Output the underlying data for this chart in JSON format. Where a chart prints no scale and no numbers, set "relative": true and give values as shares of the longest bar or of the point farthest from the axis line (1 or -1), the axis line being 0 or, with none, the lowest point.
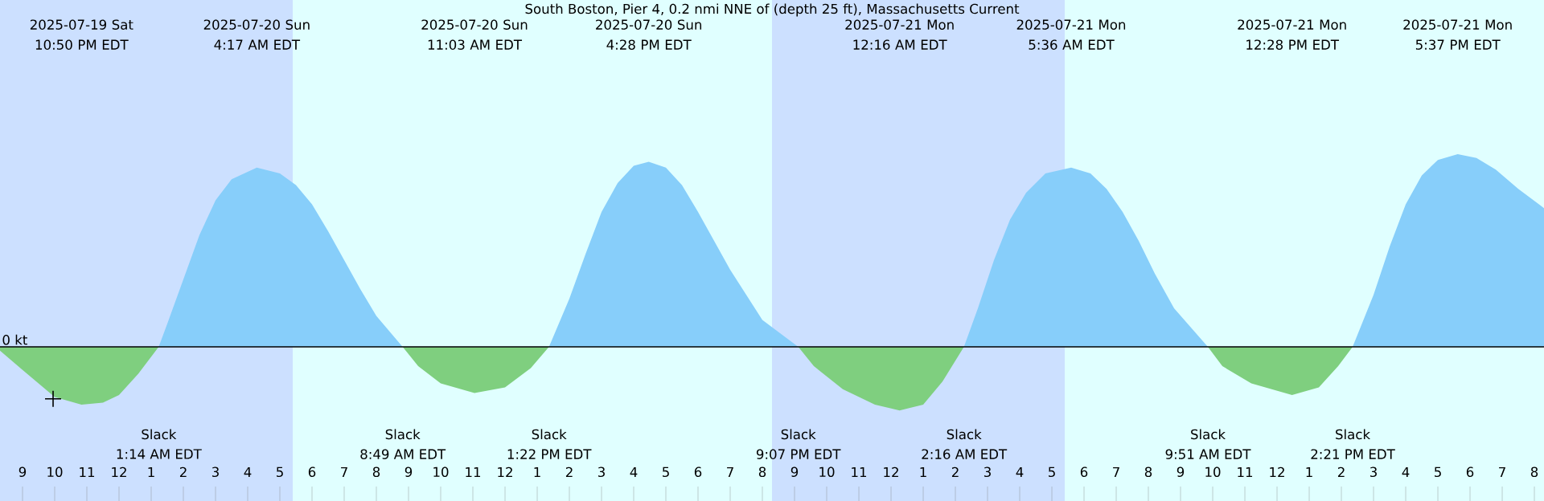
{
  "chart_data": {
    "type": "area",
    "title": "South Boston, Pier 4, 0.2 nmi NNE of (depth 25 ft), Massachusetts Current",
    "relative": true,
    "series": [
      {
        "color": "#87cefa",
        "x": [
          "2025-07-20T01:14",
          "2025-07-20T01:30",
          "2025-07-20T02:00",
          "2025-07-20T02:30",
          "2025-07-20T03:00",
          "2025-07-20T03:30",
          "2025-07-20T04:17",
          "2025-07-20T05:00",
          "2025-07-20T05:30",
          "2025-07-20T06:00",
          "2025-07-20T06:30",
          "2025-07-20T07:00",
          "2025-07-20T07:30",
          "2025-07-20T08:00",
          "2025-07-20T08:49",
          "2025-07-20T13:22",
          "2025-07-20T14:00",
          "2025-07-20T14:30",
          "2025-07-20T15:00",
          "2025-07-20T15:30",
          "2025-07-20T16:00",
          "2025-07-20T16:28",
          "2025-07-20T17:00",
          "2025-07-20T17:30",
          "2025-07-20T18:00",
          "2025-07-20T18:30",
          "2025-07-20T19:00",
          "2025-07-20T19:30",
          "2025-07-20T20:00",
          "2025-07-20T21:07",
          "2025-07-21T02:16",
          "2025-07-21T02:42",
          "2025-07-21T03:12",
          "2025-07-21T03:42",
          "2025-07-21T04:12",
          "2025-07-21T04:48",
          "2025-07-21T05:36",
          "2025-07-21T06:12",
          "2025-07-21T06:42",
          "2025-07-21T07:12",
          "2025-07-21T07:42",
          "2025-07-21T08:12",
          "2025-07-21T08:48",
          "2025-07-21T09:51",
          "2025-07-21T14:21",
          "2025-07-21T15:00",
          "2025-07-21T15:30",
          "2025-07-21T16:00",
          "2025-07-21T16:30",
          "2025-07-21T17:00",
          "2025-07-21T17:37",
          "2025-07-21T18:12",
          "2025-07-21T18:48",
          "2025-07-21T19:30",
          "2025-07-21T20:18"
        ],
        "values": [
          0,
          0.12,
          0.35,
          0.58,
          0.76,
          0.87,
          0.93,
          0.9,
          0.84,
          0.74,
          0.6,
          0.45,
          0.3,
          0.16,
          0,
          0,
          0.25,
          0.48,
          0.7,
          0.85,
          0.94,
          0.96,
          0.93,
          0.84,
          0.7,
          0.55,
          0.4,
          0.27,
          0.14,
          0,
          0,
          0.2,
          0.45,
          0.66,
          0.8,
          0.9,
          0.93,
          0.9,
          0.82,
          0.7,
          0.55,
          0.38,
          0.2,
          0,
          0,
          0.27,
          0.52,
          0.74,
          0.89,
          0.97,
          1.0,
          0.98,
          0.92,
          0.82,
          0.72
        ]
      },
      {
        "color": "#7fcf7f",
        "x": [
          "2025-07-19T20:18",
          "2025-07-19T21:00",
          "2025-07-19T22:00",
          "2025-07-19T22:50",
          "2025-07-19T23:30",
          "2025-07-20T00:00",
          "2025-07-20T00:36",
          "2025-07-20T01:14",
          "2025-07-20T08:49",
          "2025-07-20T09:18",
          "2025-07-20T10:00",
          "2025-07-20T11:03",
          "2025-07-20T12:00",
          "2025-07-20T12:48",
          "2025-07-20T13:22",
          "2025-07-20T21:07",
          "2025-07-20T21:36",
          "2025-07-20T22:30",
          "2025-07-20T23:30",
          "2025-07-21T00:16",
          "2025-07-21T01:00",
          "2025-07-21T01:36",
          "2025-07-21T02:16",
          "2025-07-21T09:51",
          "2025-07-21T10:18",
          "2025-07-21T11:12",
          "2025-07-21T12:28",
          "2025-07-21T13:18",
          "2025-07-21T13:54",
          "2025-07-21T14:21"
        ],
        "values": [
          -0.02,
          -0.12,
          -0.26,
          -0.3,
          -0.29,
          -0.25,
          -0.14,
          0,
          0,
          -0.1,
          -0.19,
          -0.24,
          -0.21,
          -0.11,
          0,
          0,
          -0.1,
          -0.22,
          -0.3,
          -0.33,
          -0.3,
          -0.18,
          0,
          0,
          -0.1,
          -0.19,
          -0.25,
          -0.21,
          -0.1,
          0
        ]
      },
      {
        "type": "scatter",
        "marker": "cross",
        "color": "#000000",
        "x": [
          "2025-07-19T21:57"
        ],
        "values": [
          -0.27
        ]
      }
    ],
    "xlim": [
      "2025-07-19T20:18",
      "2025-07-21T20:18"
    ],
    "xticks": [
      {
        "value": "2025-07-19T21:00",
        "label": "9"
      },
      {
        "value": "2025-07-19T22:00",
        "label": "10"
      },
      {
        "value": "2025-07-19T23:00",
        "label": "11"
      },
      {
        "value": "2025-07-20T00:00",
        "label": "12"
      },
      {
        "value": "2025-07-20T01:00",
        "label": "1"
      },
      {
        "value": "2025-07-20T02:00",
        "label": "2"
      },
      {
        "value": "2025-07-20T03:00",
        "label": "3"
      },
      {
        "value": "2025-07-20T04:00",
        "label": "4"
      },
      {
        "value": "2025-07-20T05:00",
        "label": "5"
      },
      {
        "value": "2025-07-20T06:00",
        "label": "6"
      },
      {
        "value": "2025-07-20T07:00",
        "label": "7"
      },
      {
        "value": "2025-07-20T08:00",
        "label": "8"
      },
      {
        "value": "2025-07-20T09:00",
        "label": "9"
      },
      {
        "value": "2025-07-20T10:00",
        "label": "10"
      },
      {
        "value": "2025-07-20T11:00",
        "label": "11"
      },
      {
        "value": "2025-07-20T12:00",
        "label": "12"
      },
      {
        "value": "2025-07-20T13:00",
        "label": "1"
      },
      {
        "value": "2025-07-20T14:00",
        "label": "2"
      },
      {
        "value": "2025-07-20T15:00",
        "label": "3"
      },
      {
        "value": "2025-07-20T16:00",
        "label": "4"
      },
      {
        "value": "2025-07-20T17:00",
        "label": "5"
      },
      {
        "value": "2025-07-20T18:00",
        "label": "6"
      },
      {
        "value": "2025-07-20T19:00",
        "label": "7"
      },
      {
        "value": "2025-07-20T20:00",
        "label": "8"
      },
      {
        "value": "2025-07-20T21:00",
        "label": "9"
      },
      {
        "value": "2025-07-20T22:00",
        "label": "10"
      },
      {
        "value": "2025-07-20T23:00",
        "label": "11"
      },
      {
        "value": "2025-07-21T00:00",
        "label": "12"
      },
      {
        "value": "2025-07-21T01:00",
        "label": "1"
      },
      {
        "value": "2025-07-21T02:00",
        "label": "2"
      },
      {
        "value": "2025-07-21T03:00",
        "label": "3"
      },
      {
        "value": "2025-07-21T04:00",
        "label": "4"
      },
      {
        "value": "2025-07-21T05:00",
        "label": "5"
      },
      {
        "value": "2025-07-21T06:00",
        "label": "6"
      },
      {
        "value": "2025-07-21T07:00",
        "label": "7"
      },
      {
        "value": "2025-07-21T08:00",
        "label": "8"
      },
      {
        "value": "2025-07-21T09:00",
        "label": "9"
      },
      {
        "value": "2025-07-21T10:00",
        "label": "10"
      },
      {
        "value": "2025-07-21T11:00",
        "label": "11"
      },
      {
        "value": "2025-07-21T12:00",
        "label": "12"
      },
      {
        "value": "2025-07-21T13:00",
        "label": "1"
      },
      {
        "value": "2025-07-21T14:00",
        "label": "2"
      },
      {
        "value": "2025-07-21T15:00",
        "label": "3"
      },
      {
        "value": "2025-07-21T16:00",
        "label": "4"
      },
      {
        "value": "2025-07-21T17:00",
        "label": "5"
      },
      {
        "value": "2025-07-21T18:00",
        "label": "6"
      },
      {
        "value": "2025-07-21T19:00",
        "label": "7"
      },
      {
        "value": "2025-07-21T20:00",
        "label": "8"
      }
    ],
    "ref_lines": [
      {
        "axis": "y",
        "value": 0,
        "label": "0 kt",
        "color": "#000000"
      }
    ],
    "bands": [
      {
        "axis": "x",
        "from": "2025-07-19T20:18",
        "to": "2025-07-20T05:24",
        "color": "#cce0ff"
      },
      {
        "axis": "x",
        "from": "2025-07-20T05:24",
        "to": "2025-07-20T20:18",
        "color": "#e0ffff"
      },
      {
        "axis": "x",
        "from": "2025-07-20T20:18",
        "to": "2025-07-21T05:24",
        "color": "#cce0ff"
      },
      {
        "axis": "x",
        "from": "2025-07-21T05:24",
        "to": "2025-07-21T20:18",
        "color": "#e0ffff"
      }
    ],
    "x2lim": [
      "2025-07-19T20:18",
      "2025-07-21T20:18"
    ],
    "x2ticks": [
      {
        "value": "2025-07-19T22:50",
        "label": "2025-07-19 Sat 10:50 PM EDT"
      },
      {
        "value": "2025-07-20T04:17",
        "label": "2025-07-20 Sun 4:17 AM EDT"
      },
      {
        "value": "2025-07-20T11:03",
        "label": "2025-07-20 Sun 11:03 AM EDT"
      },
      {
        "value": "2025-07-20T16:28",
        "label": "2025-07-20 Sun 4:28 PM EDT"
      },
      {
        "value": "2025-07-21T00:16",
        "label": "2025-07-21 Mon 12:16 AM EDT"
      },
      {
        "value": "2025-07-21T05:36",
        "label": "2025-07-21 Mon 5:36 AM EDT"
      },
      {
        "value": "2025-07-21T12:28",
        "label": "2025-07-21 Mon 12:28 PM EDT"
      },
      {
        "value": "2025-07-21T17:37",
        "label": "2025-07-21 Mon 5:37 PM EDT"
      }
    ],
    "annotations": [
      "Slack",
      "1:14 AM EDT",
      "Slack",
      "8:49 AM EDT",
      "Slack",
      "1:22 PM EDT",
      "Slack",
      "9:07 PM EDT",
      "Slack",
      "2:16 AM EDT",
      "Slack",
      "9:51 AM EDT",
      "Slack",
      "2:21 PM EDT"
    ]
  }
}
